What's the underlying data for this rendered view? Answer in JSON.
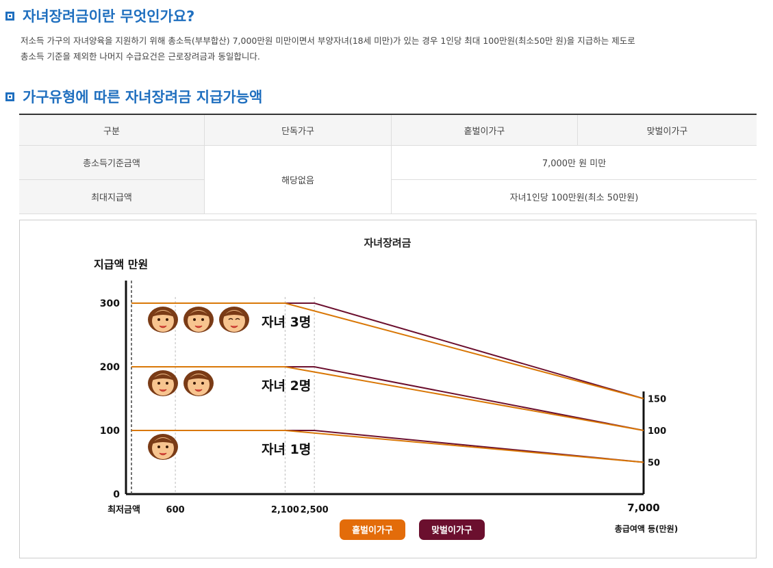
{
  "section1": {
    "title": "자녀장려금이란 무엇인가요?",
    "line1": "저소득 가구의 자녀양육을 지원하기 위해 총소득(부부합산) 7,000만원 미만이면서 부양자녀(18세 미만)가 있는 경우 1인당 최대 100만원(최소50만 원)을 지급하는 제도로",
    "line2": "총소득 기준을 제외한 나머지 수급요건은 근로장려금과 동일합니다."
  },
  "section2": {
    "title": "가구유형에 따른 자녀장려금 지급가능액"
  },
  "table": {
    "headers": [
      "구분",
      "단독가구",
      "홑벌이가구",
      "맞벌이가구"
    ],
    "row1_label": "총소득기준금액",
    "single_value": "해당없음",
    "row1_value": "7,000만 원 미만",
    "row2_label": "최대지급액",
    "row2_value": "자녀1인당 100만원(최소 50만원)"
  },
  "chart_data": {
    "type": "line",
    "title": "자녀장려금",
    "ylabel": "지급액 만원",
    "xlabel": "총급여액 등(만원)",
    "x_min_label": "최저금액",
    "ylim": [
      0,
      300
    ],
    "xlim": [
      0,
      7000
    ],
    "y_ticks": [
      "0",
      "100",
      "200",
      "300"
    ],
    "x_ticks": [
      {
        "value": 600,
        "label": "600"
      },
      {
        "value": 2100,
        "label": "2,100"
      },
      {
        "value": 2500,
        "label": "2,500"
      },
      {
        "value": 7000,
        "label": "7,000"
      }
    ],
    "right_labels": [
      {
        "value": 150,
        "label": "150"
      },
      {
        "value": 100,
        "label": "100"
      },
      {
        "value": 50,
        "label": "50"
      }
    ],
    "series": [
      {
        "name": "홑벌이가구",
        "color": "#d97706",
        "groups": [
          {
            "children": "자녀 3명",
            "points": [
              [
                0,
                300
              ],
              [
                2100,
                300
              ],
              [
                7000,
                150
              ]
            ]
          },
          {
            "children": "자녀 2명",
            "points": [
              [
                0,
                200
              ],
              [
                2100,
                200
              ],
              [
                7000,
                100
              ]
            ]
          },
          {
            "children": "자녀 1명",
            "points": [
              [
                0,
                100
              ],
              [
                2100,
                100
              ],
              [
                7000,
                50
              ]
            ]
          }
        ]
      },
      {
        "name": "맞벌이가구",
        "color": "#6b0f2e",
        "groups": [
          {
            "children": "자녀 3명",
            "points": [
              [
                600,
                300
              ],
              [
                2500,
                300
              ],
              [
                7000,
                150
              ]
            ]
          },
          {
            "children": "자녀 2명",
            "points": [
              [
                600,
                200
              ],
              [
                2500,
                200
              ],
              [
                7000,
                100
              ]
            ]
          },
          {
            "children": "자녀 1명",
            "points": [
              [
                600,
                100
              ],
              [
                2500,
                100
              ],
              [
                7000,
                50
              ]
            ]
          }
        ]
      }
    ],
    "band_labels": [
      {
        "text": "자녀 3명",
        "y": 300,
        "faces": 3
      },
      {
        "text": "자녀 2명",
        "y": 200,
        "faces": 2
      },
      {
        "text": "자녀 1명",
        "y": 100,
        "faces": 1
      }
    ],
    "legend": [
      {
        "label": "홑벌이가구",
        "color": "#e36c0a"
      },
      {
        "label": "맞벌이가구",
        "color": "#6b0f2e"
      }
    ]
  }
}
